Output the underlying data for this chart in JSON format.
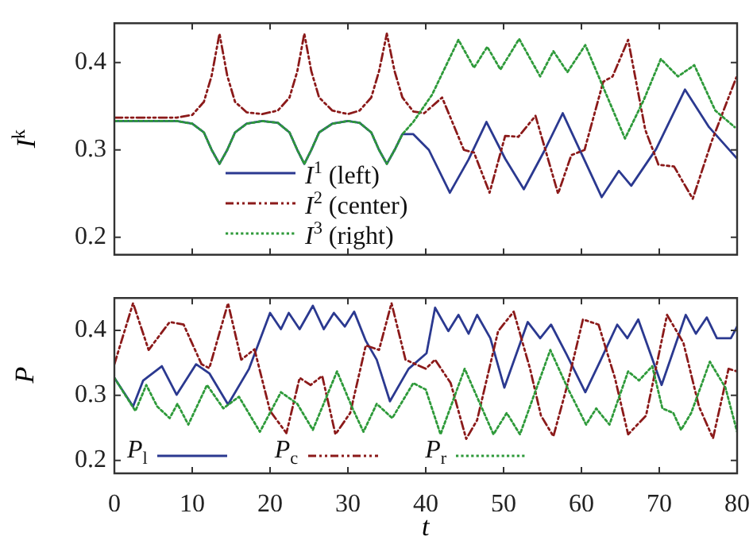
{
  "chart_data": [
    {
      "type": "line",
      "ylabel": "I$^{k}$",
      "xlim": [
        0,
        80
      ],
      "xticks": [
        0,
        10,
        20,
        30,
        40,
        50,
        60,
        70,
        80
      ],
      "ylim": [
        0.18,
        0.445
      ],
      "yticks": [
        0.2,
        0.3,
        0.4
      ],
      "tick_labels": "y",
      "legend": "bottom left",
      "marker": "none",
      "series": [
        {
          "name": "I$^{1}$ (left)",
          "color": "#2b3990",
          "line_style": "solid",
          "x": [
            0,
            8,
            10,
            11.5,
            12.5,
            13.5,
            14.5,
            15.5,
            17,
            19,
            21,
            22.5,
            23.5,
            24.4,
            25.3,
            26.3,
            28,
            30,
            31.5,
            33,
            34,
            35,
            36,
            37,
            38.4,
            40.4,
            43.1,
            45.5,
            47.8,
            50.2,
            52.6,
            55.3,
            57.6,
            60.1,
            62.6,
            64.8,
            66.4,
            69.6,
            73.3,
            76.4,
            79.9
          ],
          "values": [
            0.333,
            0.333,
            0.33,
            0.32,
            0.3,
            0.284,
            0.3,
            0.32,
            0.33,
            0.333,
            0.331,
            0.32,
            0.3,
            0.284,
            0.3,
            0.32,
            0.33,
            0.333,
            0.331,
            0.32,
            0.3,
            0.284,
            0.3,
            0.318,
            0.318,
            0.3,
            0.251,
            0.289,
            0.332,
            0.29,
            0.255,
            0.3,
            0.342,
            0.294,
            0.246,
            0.276,
            0.259,
            0.301,
            0.369,
            0.326,
            0.291
          ]
        },
        {
          "name": "I$^{2}$ (center)",
          "color": "#8b1a1a",
          "line_style": "dashed",
          "x": [
            0,
            8,
            10,
            11.5,
            12.5,
            13.5,
            14.5,
            15.5,
            17,
            19,
            21,
            22.5,
            23.5,
            24.4,
            25.3,
            26.3,
            28,
            30,
            31.5,
            33,
            34,
            35,
            36,
            37,
            38.4,
            39.8,
            42.1,
            44.9,
            46.2,
            48.2,
            50.2,
            51.9,
            54.1,
            57,
            58.7,
            60.4,
            62.8,
            64,
            66,
            68.2,
            69.9,
            71.9,
            74.3,
            76.7,
            79.9
          ],
          "values": [
            0.337,
            0.337,
            0.34,
            0.355,
            0.385,
            0.433,
            0.385,
            0.355,
            0.343,
            0.341,
            0.345,
            0.36,
            0.39,
            0.433,
            0.39,
            0.36,
            0.345,
            0.341,
            0.345,
            0.36,
            0.39,
            0.433,
            0.39,
            0.36,
            0.344,
            0.342,
            0.36,
            0.3,
            0.297,
            0.251,
            0.316,
            0.315,
            0.339,
            0.25,
            0.294,
            0.3,
            0.378,
            0.384,
            0.426,
            0.323,
            0.283,
            0.281,
            0.244,
            0.309,
            0.383
          ]
        },
        {
          "name": "I$^{3}$ (right)",
          "color": "#2e9a3a",
          "line_style": "dotted",
          "x": [
            0,
            8,
            10,
            11.5,
            12.5,
            13.5,
            14.5,
            15.5,
            17,
            19,
            21,
            22.5,
            23.5,
            24.4,
            25.3,
            26.3,
            28,
            30,
            31.5,
            33,
            34,
            35,
            36,
            37,
            38.4,
            40.8,
            44.2,
            46.2,
            47.9,
            49.6,
            52,
            54.7,
            56.4,
            58.2,
            60.5,
            62.5,
            65.6,
            68,
            70.2,
            72.4,
            74.5,
            77.2,
            79.7
          ],
          "values": [
            0.333,
            0.333,
            0.33,
            0.32,
            0.3,
            0.284,
            0.3,
            0.32,
            0.33,
            0.333,
            0.331,
            0.32,
            0.3,
            0.284,
            0.3,
            0.32,
            0.33,
            0.333,
            0.331,
            0.32,
            0.3,
            0.284,
            0.3,
            0.318,
            0.332,
            0.363,
            0.426,
            0.394,
            0.418,
            0.392,
            0.427,
            0.384,
            0.413,
            0.389,
            0.42,
            0.378,
            0.313,
            0.357,
            0.404,
            0.384,
            0.397,
            0.345,
            0.326
          ]
        }
      ]
    },
    {
      "type": "line",
      "xlabel": "t",
      "ylabel": "P",
      "xlim": [
        0,
        80
      ],
      "xticks": [
        0,
        10,
        20,
        30,
        40,
        50,
        60,
        70,
        80
      ],
      "ylim": [
        0.18,
        0.45
      ],
      "yticks": [
        0.2,
        0.3,
        0.4
      ],
      "legend": "bottom",
      "marker": "none",
      "series": [
        {
          "name": "P$_{l}$",
          "color": "#2b3990",
          "line_style": "solid",
          "x": [
            0,
            2.4,
            3.7,
            6.1,
            8,
            10.5,
            12.2,
            14.6,
            17.3,
            20,
            21.4,
            22.4,
            23.8,
            25.5,
            26.9,
            28.2,
            29.6,
            30.8,
            32.3,
            33.7,
            35.4,
            37.8,
            40.1,
            41.2,
            42.9,
            44.2,
            45.5,
            46.6,
            48.3,
            50.1,
            53.1,
            54.7,
            56.1,
            58.1,
            60.5,
            62.5,
            64.6,
            65.9,
            67.3,
            70.3,
            73.4,
            74.7,
            76.1,
            77.4,
            79.2,
            80
          ],
          "values": [
            0.327,
            0.283,
            0.323,
            0.345,
            0.301,
            0.348,
            0.334,
            0.286,
            0.341,
            0.427,
            0.402,
            0.427,
            0.402,
            0.438,
            0.402,
            0.427,
            0.406,
            0.429,
            0.384,
            0.355,
            0.291,
            0.341,
            0.365,
            0.435,
            0.399,
            0.424,
            0.395,
            0.424,
            0.388,
            0.312,
            0.413,
            0.388,
            0.409,
            0.363,
            0.305,
            0.355,
            0.409,
            0.388,
            0.417,
            0.316,
            0.424,
            0.395,
            0.42,
            0.388,
            0.388,
            0.406
          ]
        },
        {
          "name": "P$_{c}$",
          "color": "#8b1a1a",
          "line_style": "dashed",
          "x": [
            0,
            2.4,
            4.4,
            7.1,
            8.9,
            11.2,
            12.2,
            14.6,
            16.3,
            18,
            20,
            22.1,
            23.8,
            25.2,
            26.7,
            28.4,
            30.3,
            32.3,
            34,
            35.6,
            37.4,
            40,
            41.2,
            43.2,
            45.2,
            46.6,
            49.3,
            51.3,
            53.4,
            54.8,
            56.4,
            58.1,
            60.2,
            62.2,
            64.3,
            66,
            68.3,
            71,
            73.1,
            75.1,
            76.9,
            78.9,
            80
          ],
          "values": [
            0.348,
            0.442,
            0.37,
            0.413,
            0.409,
            0.348,
            0.342,
            0.442,
            0.355,
            0.371,
            0.276,
            0.242,
            0.327,
            0.316,
            0.33,
            0.24,
            0.273,
            0.377,
            0.37,
            0.442,
            0.355,
            0.341,
            0.355,
            0.319,
            0.233,
            0.262,
            0.399,
            0.429,
            0.341,
            0.269,
            0.237,
            0.312,
            0.417,
            0.409,
            0.327,
            0.24,
            0.269,
            0.424,
            0.381,
            0.283,
            0.234,
            0.341,
            0.337
          ]
        },
        {
          "name": "P$_{r}$",
          "color": "#2e9a3a",
          "line_style": "dotted",
          "x": [
            0,
            2.7,
            4.1,
            5.5,
            7.1,
            8.1,
            9.5,
            11.9,
            14,
            16,
            18.7,
            21.4,
            23.5,
            25.5,
            28.6,
            30.6,
            32,
            33.7,
            35.7,
            38.4,
            40,
            41.9,
            45,
            48.7,
            50.4,
            52.1,
            56,
            58.2,
            60.6,
            61.9,
            63.6,
            66,
            67.4,
            69.1,
            70.4,
            71.8,
            72.8,
            74.1,
            76.5,
            78.5,
            80
          ],
          "values": [
            0.327,
            0.276,
            0.316,
            0.283,
            0.265,
            0.287,
            0.255,
            0.316,
            0.28,
            0.298,
            0.244,
            0.305,
            0.287,
            0.247,
            0.337,
            0.28,
            0.244,
            0.287,
            0.265,
            0.319,
            0.309,
            0.24,
            0.341,
            0.24,
            0.273,
            0.24,
            0.37,
            0.312,
            0.255,
            0.28,
            0.255,
            0.337,
            0.323,
            0.345,
            0.28,
            0.273,
            0.247,
            0.273,
            0.352,
            0.312,
            0.244
          ]
        }
      ]
    }
  ]
}
